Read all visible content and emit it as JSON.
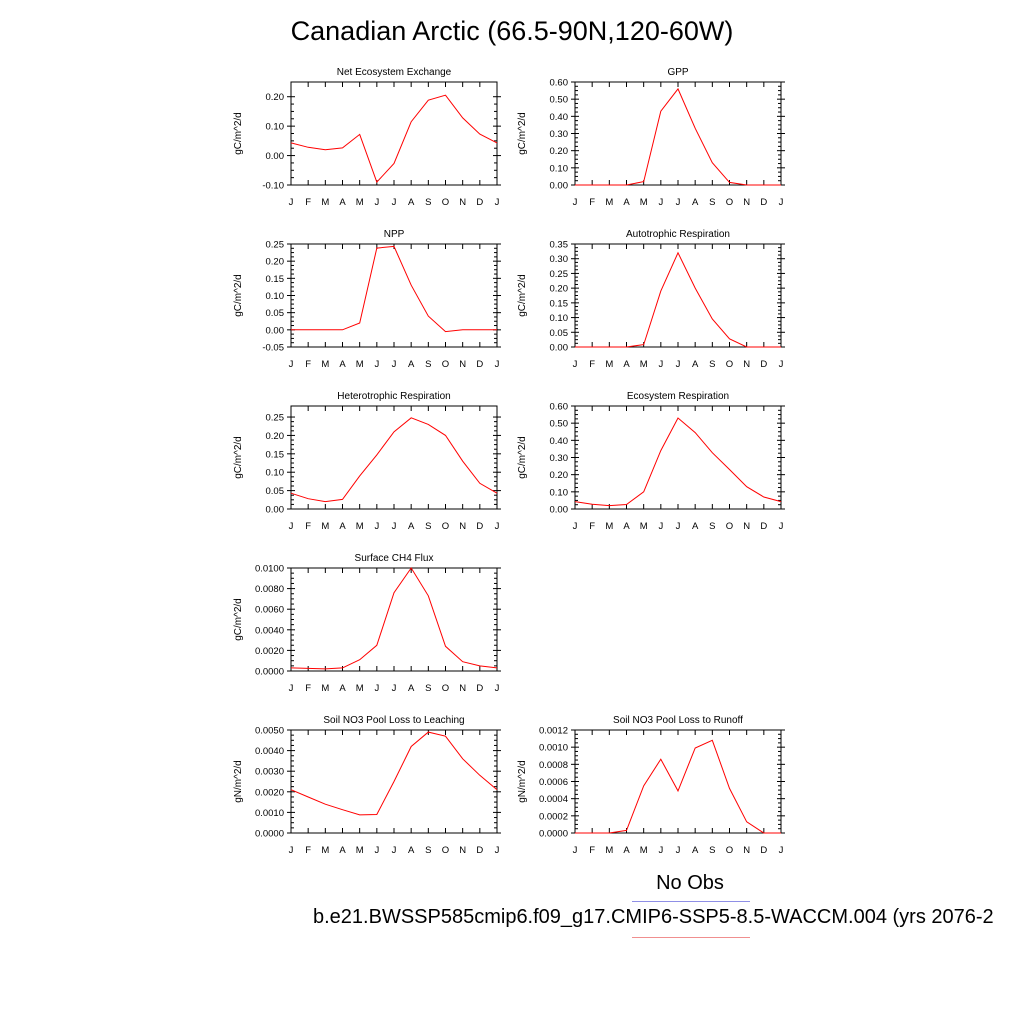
{
  "page_title": "Canadian Arctic (66.5-90N,120-60W)",
  "legend": {
    "obs_label": "No Obs",
    "model_label": "b.e21.BWSSP585cmip6.f09_g17.CMIP6-SSP5-8.5-WACCM.004 (yrs 2076-2",
    "obs_color": "#8f8fe6",
    "model_color": "#f08f8f"
  },
  "line_color": "#ff0000",
  "chart_data": [
    {
      "type": "line",
      "title": "Net Ecosystem Exchange",
      "ylabel": "gC/m^2/d",
      "x": [
        "J",
        "F",
        "M",
        "A",
        "M",
        "J",
        "J",
        "A",
        "S",
        "O",
        "N",
        "D",
        "J"
      ],
      "ylim": [
        -0.1,
        0.25
      ],
      "yticks": [
        "-0.10",
        "0.00",
        "0.10",
        "0.20"
      ],
      "values": [
        0.043,
        0.028,
        0.02,
        0.026,
        0.072,
        -0.09,
        -0.027,
        0.115,
        0.188,
        0.205,
        0.128,
        0.073,
        0.043
      ]
    },
    {
      "type": "line",
      "title": "GPP",
      "ylabel": "gC/m^2/d",
      "x": [
        "J",
        "F",
        "M",
        "A",
        "M",
        "J",
        "J",
        "A",
        "S",
        "O",
        "N",
        "D",
        "J"
      ],
      "ylim": [
        0,
        0.6
      ],
      "yticks": [
        "0.00",
        "0.10",
        "0.20",
        "0.30",
        "0.40",
        "0.50",
        "0.60"
      ],
      "values": [
        0.0,
        0.0,
        0.0,
        0.0,
        0.02,
        0.43,
        0.56,
        0.33,
        0.13,
        0.015,
        0.0,
        0.0,
        0.0
      ]
    },
    {
      "type": "line",
      "title": "NPP",
      "ylabel": "gC/m^2/d",
      "x": [
        "J",
        "F",
        "M",
        "A",
        "M",
        "J",
        "J",
        "A",
        "S",
        "O",
        "N",
        "D",
        "J"
      ],
      "ylim": [
        -0.05,
        0.25
      ],
      "yticks": [
        "-0.05",
        "0.00",
        "0.05",
        "0.10",
        "0.15",
        "0.20",
        "0.25"
      ],
      "values": [
        0.0,
        0.0,
        0.0,
        0.0,
        0.02,
        0.238,
        0.243,
        0.13,
        0.04,
        -0.005,
        0.0,
        0.0,
        0.0
      ]
    },
    {
      "type": "line",
      "title": "Autotrophic Respiration",
      "ylabel": "gC/m^2/d",
      "x": [
        "J",
        "F",
        "M",
        "A",
        "M",
        "J",
        "J",
        "A",
        "S",
        "O",
        "N",
        "D",
        "J"
      ],
      "ylim": [
        0,
        0.35
      ],
      "yticks": [
        "0.00",
        "0.05",
        "0.10",
        "0.15",
        "0.20",
        "0.25",
        "0.30",
        "0.35"
      ],
      "values": [
        0.0,
        0.0,
        0.0,
        0.0,
        0.008,
        0.19,
        0.32,
        0.2,
        0.095,
        0.028,
        0.0,
        0.0,
        0.0
      ]
    },
    {
      "type": "line",
      "title": "Heterotrophic Respiration",
      "ylabel": "gC/m^2/d",
      "x": [
        "J",
        "F",
        "M",
        "A",
        "M",
        "J",
        "J",
        "A",
        "S",
        "O",
        "N",
        "D",
        "J"
      ],
      "ylim": [
        0,
        0.28
      ],
      "yticks": [
        "0.00",
        "0.05",
        "0.10",
        "0.15",
        "0.20",
        "0.25"
      ],
      "values": [
        0.043,
        0.028,
        0.02,
        0.026,
        0.09,
        0.147,
        0.21,
        0.248,
        0.23,
        0.2,
        0.13,
        0.07,
        0.043
      ]
    },
    {
      "type": "line",
      "title": "Ecosystem Respiration",
      "ylabel": "gC/m^2/d",
      "x": [
        "J",
        "F",
        "M",
        "A",
        "M",
        "J",
        "J",
        "A",
        "S",
        "O",
        "N",
        "D",
        "J"
      ],
      "ylim": [
        0,
        0.6
      ],
      "yticks": [
        "0.00",
        "0.10",
        "0.20",
        "0.30",
        "0.40",
        "0.50",
        "0.60"
      ],
      "values": [
        0.043,
        0.028,
        0.02,
        0.026,
        0.1,
        0.34,
        0.53,
        0.445,
        0.328,
        0.23,
        0.13,
        0.07,
        0.043
      ]
    },
    {
      "type": "line",
      "title": "Surface CH4 Flux",
      "ylabel": "gC/m^2/d",
      "x": [
        "J",
        "F",
        "M",
        "A",
        "M",
        "J",
        "J",
        "A",
        "S",
        "O",
        "N",
        "D",
        "J"
      ],
      "ylim": [
        0,
        0.01
      ],
      "yticks": [
        "0.0000",
        "0.0020",
        "0.0040",
        "0.0060",
        "0.0080",
        "0.0100"
      ],
      "values": [
        0.0003,
        0.00025,
        0.0002,
        0.0003,
        0.0011,
        0.0025,
        0.0076,
        0.01,
        0.0073,
        0.0024,
        0.0009,
        0.0005,
        0.0003
      ]
    },
    null,
    {
      "type": "line",
      "title": "Soil NO3 Pool Loss to Leaching",
      "ylabel": "gN/m^2/d",
      "x": [
        "J",
        "F",
        "M",
        "A",
        "M",
        "J",
        "J",
        "A",
        "S",
        "O",
        "N",
        "D",
        "J"
      ],
      "ylim": [
        0,
        0.005
      ],
      "yticks": [
        "0.0000",
        "0.0010",
        "0.0020",
        "0.0030",
        "0.0040",
        "0.0050"
      ],
      "values": [
        0.0021,
        0.00175,
        0.0014,
        0.00113,
        0.00088,
        0.0009,
        0.0025,
        0.0042,
        0.0049,
        0.0047,
        0.0036,
        0.0028,
        0.0021
      ]
    },
    {
      "type": "line",
      "title": "Soil NO3 Pool Loss to Runoff",
      "ylabel": "gN/m^2/d",
      "x": [
        "J",
        "F",
        "M",
        "A",
        "M",
        "J",
        "J",
        "A",
        "S",
        "O",
        "N",
        "D",
        "J"
      ],
      "ylim": [
        0,
        0.0012
      ],
      "yticks": [
        "0.0000",
        "0.0002",
        "0.0004",
        "0.0006",
        "0.0008",
        "0.0010",
        "0.0012"
      ],
      "values": [
        0.0,
        0.0,
        0.0,
        3e-05,
        0.00055,
        0.00086,
        0.00049,
        0.00099,
        0.00108,
        0.00052,
        0.00013,
        0.0,
        0.0
      ]
    }
  ]
}
